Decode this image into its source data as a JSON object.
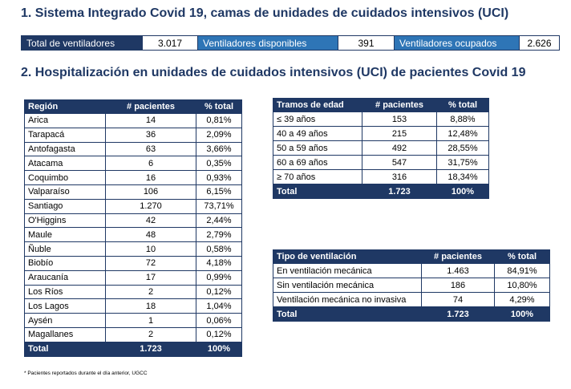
{
  "section1": {
    "title": "1. Sistema Integrado Covid 19, camas de unidades de cuidados intensivos (UCI)",
    "total_label": "Total de ventiladores",
    "total_value": "3.017",
    "disponibles_label": "Ventiladores disponibles",
    "disponibles_value": "391",
    "ocupados_label": "Ventiladores ocupados",
    "ocupados_value": "2.626"
  },
  "section2": {
    "title": "2. Hospitalización en unidades de cuidados intensivos (UCI) de pacientes Covid 19"
  },
  "region_table": {
    "headers": [
      "Región",
      "# pacientes",
      "% total"
    ],
    "rows": [
      [
        "Arica",
        "14",
        "0,81%"
      ],
      [
        "Tarapacá",
        "36",
        "2,09%"
      ],
      [
        "Antofagasta",
        "63",
        "3,66%"
      ],
      [
        "Atacama",
        "6",
        "0,35%"
      ],
      [
        "Coquimbo",
        "16",
        "0,93%"
      ],
      [
        "Valparaíso",
        "106",
        "6,15%"
      ],
      [
        "Santiago",
        "1.270",
        "73,71%"
      ],
      [
        "O'Higgins",
        "42",
        "2,44%"
      ],
      [
        "Maule",
        "48",
        "2,79%"
      ],
      [
        "Ñuble",
        "10",
        "0,58%"
      ],
      [
        "Biobío",
        "72",
        "4,18%"
      ],
      [
        "Araucanía",
        "17",
        "0,99%"
      ],
      [
        "Los Ríos",
        "2",
        "0,12%"
      ],
      [
        "Los Lagos",
        "18",
        "1,04%"
      ],
      [
        "Aysén",
        "1",
        "0,06%"
      ],
      [
        "Magallanes",
        "2",
        "0,12%"
      ]
    ],
    "total": [
      "Total",
      "1.723",
      "100%"
    ]
  },
  "edad_table": {
    "headers": [
      "Tramos de edad",
      "# pacientes",
      "% total"
    ],
    "rows": [
      [
        "≤ 39 años",
        "153",
        "8,88%"
      ],
      [
        "40 a 49 años",
        "215",
        "12,48%"
      ],
      [
        "50 a 59 años",
        "492",
        "28,55%"
      ],
      [
        "60 a 69 años",
        "547",
        "31,75%"
      ],
      [
        "≥ 70 años",
        "316",
        "18,34%"
      ]
    ],
    "total": [
      "Total",
      "1.723",
      "100%"
    ]
  },
  "vent_table": {
    "headers": [
      "Tipo de ventilación",
      "# pacientes",
      "% total"
    ],
    "rows": [
      [
        "En ventilación mecánica",
        "1.463",
        "84,91%"
      ],
      [
        "Sin ventilación mecánica",
        "186",
        "10,80%"
      ],
      [
        "Ventilación mecánica no invasiva",
        "74",
        "4,29%"
      ]
    ],
    "total": [
      "Total",
      "1.723",
      "100%"
    ]
  },
  "footnote": "* Pacientes reportados durante el día anterior, UGCC",
  "colors": {
    "navy": "#1f3864",
    "blue": "#2e75b6"
  }
}
